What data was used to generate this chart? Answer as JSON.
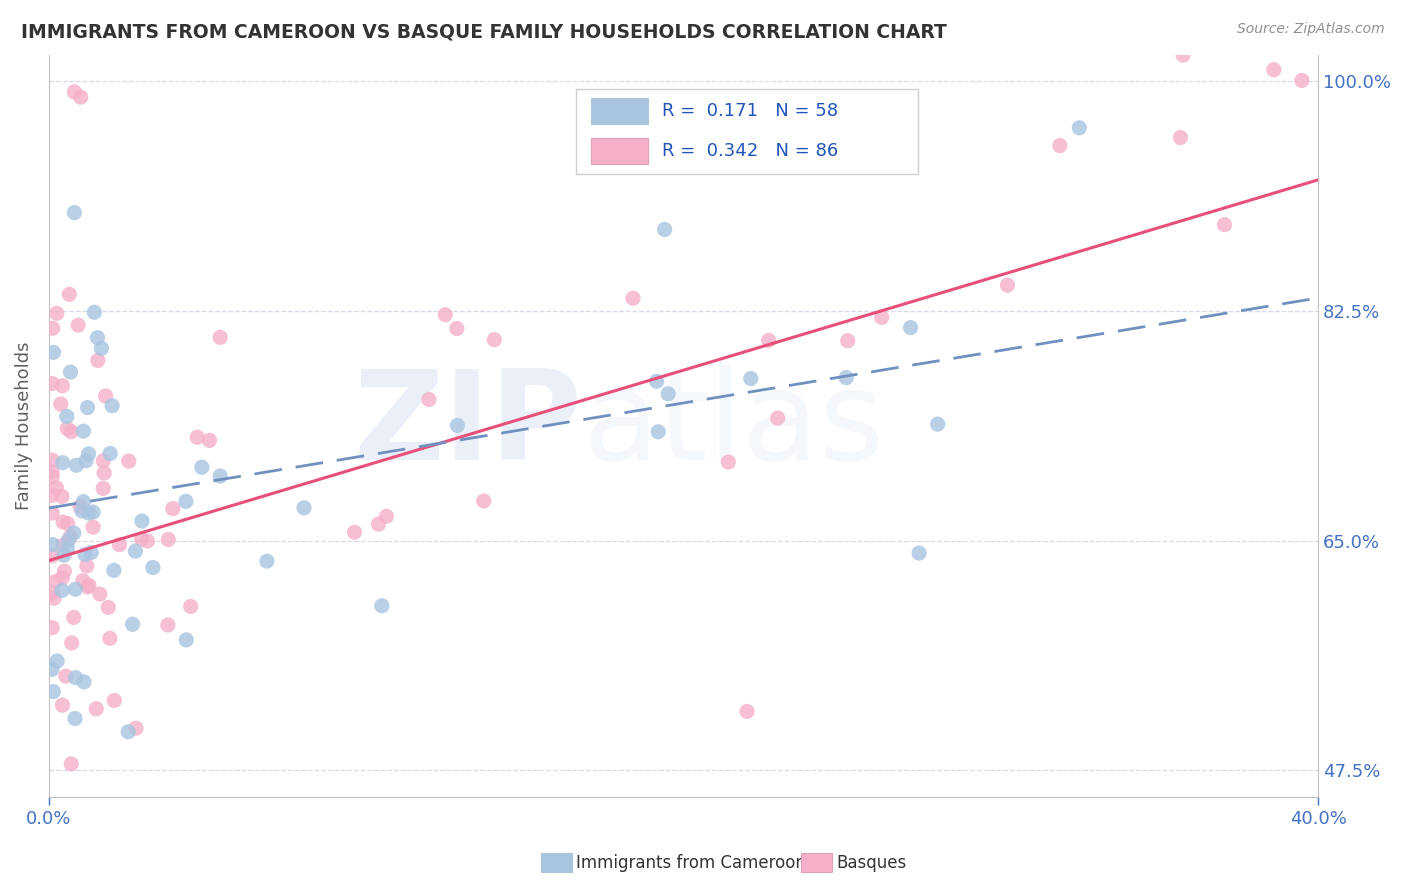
{
  "title": "IMMIGRANTS FROM CAMEROON VS BASQUE FAMILY HOUSEHOLDS CORRELATION CHART",
  "source_text": "Source: ZipAtlas.com",
  "ylabel": "Family Households",
  "xlim": [
    0.0,
    0.4
  ],
  "ylim": [
    0.455,
    1.02
  ],
  "ytick_labels_right": [
    "47.5%",
    "65.0%",
    "82.5%",
    "100.0%"
  ],
  "ytick_vals_right": [
    0.475,
    0.65,
    0.825,
    1.0
  ],
  "series1_name": "Immigrants from Cameroon",
  "series1_R": 0.171,
  "series1_N": 58,
  "series1_color": "#a8c4e0",
  "series1_line_color": "#7090c0",
  "series2_name": "Basques",
  "series2_R": 0.342,
  "series2_N": 86,
  "series2_color": "#f4b0c8",
  "series2_line_color": "#e8507a",
  "background_color": "#ffffff",
  "grid_color": "#d8d8e8",
  "title_color": "#333333",
  "axis_label_color": "#4472c4",
  "trendline1_x0": 0.0,
  "trendline1_y0": 0.675,
  "trendline1_x1": 0.4,
  "trendline1_y1": 0.835,
  "trendline2_x0": 0.0,
  "trendline2_y0": 0.635,
  "trendline2_x1": 0.4,
  "trendline2_y1": 0.925
}
